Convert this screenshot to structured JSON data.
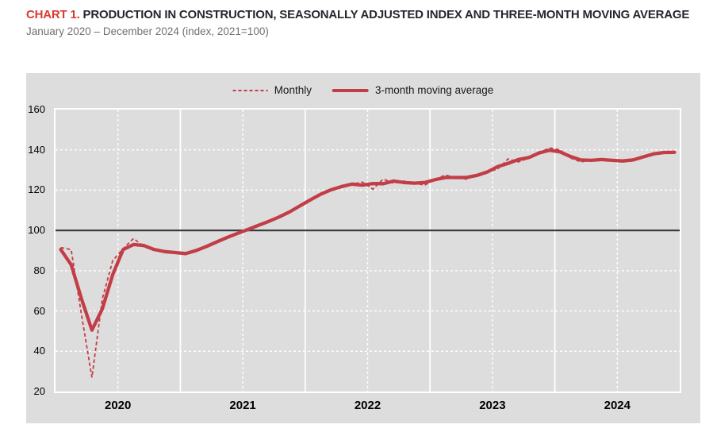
{
  "header": {
    "chart_label": "CHART 1.",
    "title": "PRODUCTION IN CONSTRUCTION, SEASONALLY ADJUSTED INDEX AND THREE-MONTH MOVING AVERAGE",
    "subtitle": "January 2020 – December 2024 (index, 2021=100)"
  },
  "legend": {
    "monthly_label": "Monthly",
    "moving_average_label": "3-month moving average"
  },
  "colors": {
    "title_red": "#d93a30",
    "title_dark": "#26262e",
    "subtitle_gray": "#707070",
    "panel_bg": "#dddddd",
    "grid_white": "#ffffff",
    "baseline_dark": "#3e3e3e",
    "line_red": "#c23e47"
  },
  "chart_data": {
    "type": "line",
    "title": "Production in construction, seasonally adjusted index and three-month moving average",
    "x_unit": "month",
    "x_start": "2020-01",
    "x_end": "2024-12",
    "year_labels": [
      "2020",
      "2021",
      "2022",
      "2023",
      "2024"
    ],
    "y_ticks": [
      20,
      40,
      60,
      80,
      100,
      120,
      140,
      160
    ],
    "ylim": [
      20,
      160
    ],
    "baseline": 100,
    "grid": true,
    "legend_position": "top-center",
    "series": [
      {
        "name": "Monthly",
        "style": "dashed",
        "values": [
          91.5,
          90.5,
          58,
          27,
          66,
          85,
          91,
          96,
          92,
          90,
          90,
          89,
          88.5,
          90,
          92,
          94.5,
          96.5,
          98.5,
          100.5,
          102.5,
          104.5,
          106.5,
          109,
          112,
          115.5,
          118,
          120.5,
          122,
          123,
          124,
          120.5,
          125.5,
          123.5,
          124.5,
          123.5,
          122.5,
          125.5,
          127.5,
          126,
          125.5,
          127.5,
          129,
          130.5,
          135.5,
          134,
          136,
          138.5,
          141,
          140,
          136,
          134,
          135,
          135.5,
          135,
          134,
          134.5,
          136.5,
          138.5,
          139,
          138.5
        ]
      },
      {
        "name": "3-month moving average",
        "style": "solid",
        "values": [
          90.5,
          83,
          66,
          50.5,
          61,
          78,
          90.5,
          93,
          92.5,
          90.5,
          89.5,
          89,
          88.5,
          90,
          92,
          94.3,
          96.5,
          98.5,
          100.5,
          102.5,
          104.5,
          106.7,
          109.2,
          112.2,
          115.2,
          118,
          120.2,
          121.8,
          123,
          122.5,
          123.3,
          123.2,
          124.5,
          123.8,
          123.5,
          123.8,
          125.2,
          126.3,
          126.3,
          126.3,
          127.3,
          129,
          131.7,
          133.3,
          135.2,
          136.2,
          138.5,
          139.8,
          139,
          136.7,
          135,
          134.8,
          135.2,
          134.8,
          134.5,
          135,
          136.5,
          138,
          138.7,
          138.8
        ]
      }
    ]
  }
}
